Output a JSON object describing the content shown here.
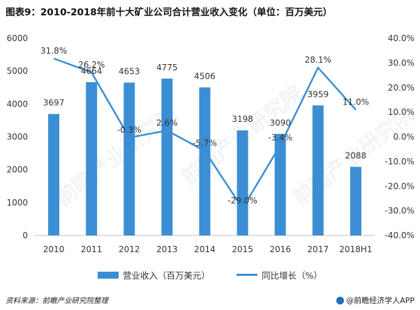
{
  "title": "图表9：2010-2018年前十大矿业公司合计营业收入变化（单位：百万美元）",
  "source": "资料来源：前瞻产业研究院整理",
  "brand": "@前瞻经济学人APP",
  "watermark": "前瞻产业研究院",
  "colors": {
    "bar": "#3b8ed4",
    "line": "#3b8ed4",
    "axis": "#bfbfbf"
  },
  "chart_data": {
    "type": "bar",
    "categories": [
      "2010",
      "2011",
      "2012",
      "2013",
      "2014",
      "2015",
      "2016",
      "2017",
      "2018H1"
    ],
    "series": [
      {
        "name": "营业收入（百万美元）",
        "type": "bar",
        "axis": "left",
        "values": [
          3697,
          4664,
          4653,
          4775,
          4506,
          3198,
          3090,
          3959,
          2088
        ],
        "labels": [
          "3697",
          "4664",
          "4653",
          "4775",
          "4506",
          "3198",
          "3090",
          "3959",
          "2088"
        ]
      },
      {
        "name": "同比增长（%）",
        "type": "line",
        "axis": "right",
        "values": [
          31.8,
          26.2,
          -0.3,
          2.6,
          -5.7,
          -29.0,
          -3.4,
          28.1,
          11.0
        ],
        "labels": [
          "31.8%",
          "26.2%",
          "-0.3%",
          "2.6%",
          "-5.7%",
          "-29.0%",
          "-3.4%",
          "28.1%",
          "11.0%"
        ]
      }
    ],
    "ylim_left": [
      0,
      6000
    ],
    "yticks_left": [
      "0",
      "1000",
      "2000",
      "3000",
      "4000",
      "5000",
      "6000"
    ],
    "ylim_right": [
      -40,
      40
    ],
    "yticks_right": [
      "-40.0%",
      "-30.0%",
      "-20.0%",
      "-10.0%",
      "0.0%",
      "10.0%",
      "20.0%",
      "30.0%",
      "40.0%"
    ],
    "grid": false,
    "legend_position": "bottom"
  }
}
